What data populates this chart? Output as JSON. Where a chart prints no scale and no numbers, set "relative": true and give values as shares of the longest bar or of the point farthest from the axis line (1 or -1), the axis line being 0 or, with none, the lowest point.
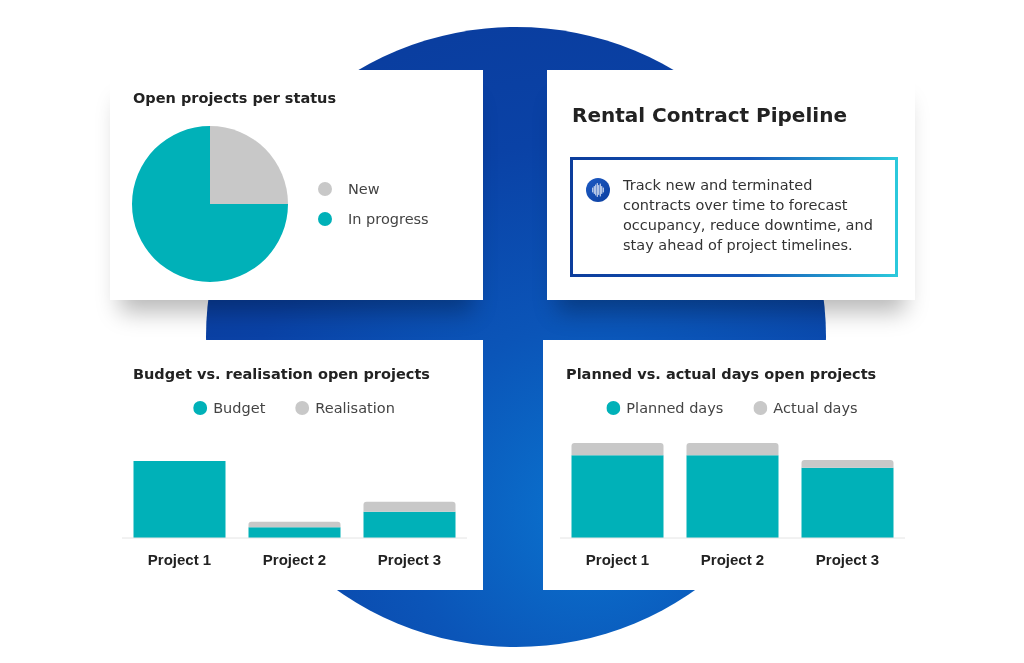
{
  "chart_data": [
    {
      "type": "pie",
      "title": "Open projects per status",
      "categories": [
        "New",
        "In progress"
      ],
      "values": [
        25,
        75
      ],
      "colors": [
        "#c8c8c8",
        "#00b1b8"
      ],
      "legend": "right"
    },
    {
      "type": "other",
      "title": "Rental Contract Pipeline",
      "annotations": [
        "Track new and terminated contracts over time to forecast occupancy, reduce downtime, and stay ahead of project timelines."
      ]
    },
    {
      "type": "bar",
      "title": "Budget vs. realisation open projects",
      "categories": [
        "Project 1",
        "Project 2",
        "Project 3"
      ],
      "relative": true,
      "stacked": true,
      "legend": "top",
      "series": [
        {
          "name": "Budget",
          "color": "#00b1b8",
          "values": [
            1,
            0.14,
            0.34
          ]
        },
        {
          "name": "Realisation",
          "color": "#c8c8c8",
          "values": [
            0,
            0.07,
            0.13
          ]
        }
      ]
    },
    {
      "type": "bar",
      "title": "Planned vs. actual days open projects",
      "categories": [
        "Project 1",
        "Project 2",
        "Project 3"
      ],
      "relative": true,
      "stacked": true,
      "legend": "top",
      "series": [
        {
          "name": "Planned days",
          "color": "#00b1b8",
          "values": [
            0.87,
            0.87,
            0.74
          ]
        },
        {
          "name": "Actual days",
          "color": "#c8c8c8",
          "values": [
            0.13,
            0.13,
            0.08
          ]
        }
      ]
    }
  ]
}
